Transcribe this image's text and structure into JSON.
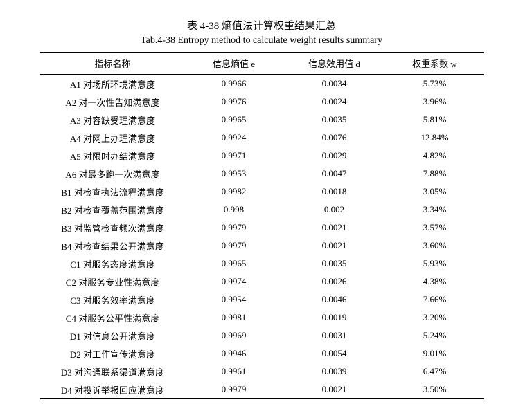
{
  "title_cn": "表 4-38  熵值法计算权重结果汇总",
  "title_en": "Tab.4-38 Entropy method to calculate weight results summary",
  "columns": [
    "指标名称",
    "信息熵值 e",
    "信息效用值 d",
    "权重系数 w"
  ],
  "rows": [
    [
      "A1 对场所环境满意度",
      "0.9966",
      "0.0034",
      "5.73%"
    ],
    [
      "A2 对一次性告知满意度",
      "0.9976",
      "0.0024",
      "3.96%"
    ],
    [
      "A3 对容缺受理满意度",
      "0.9965",
      "0.0035",
      "5.81%"
    ],
    [
      "A4 对网上办理满意度",
      "0.9924",
      "0.0076",
      "12.84%"
    ],
    [
      "A5 对限时办结满意度",
      "0.9971",
      "0.0029",
      "4.82%"
    ],
    [
      "A6 对最多跑一次满意度",
      "0.9953",
      "0.0047",
      "7.88%"
    ],
    [
      "B1 对检查执法流程满意度",
      "0.9982",
      "0.0018",
      "3.05%"
    ],
    [
      "B2 对检查覆盖范围满意度",
      "0.998",
      "0.002",
      "3.34%"
    ],
    [
      "B3 对监管检查频次满意度",
      "0.9979",
      "0.0021",
      "3.57%"
    ],
    [
      "B4 对检查结果公开满意度",
      "0.9979",
      "0.0021",
      "3.60%"
    ],
    [
      "C1 对服务态度满意度",
      "0.9965",
      "0.0035",
      "5.93%"
    ],
    [
      "C2 对服务专业性满意度",
      "0.9974",
      "0.0026",
      "4.38%"
    ],
    [
      "C3 对服务效率满意度",
      "0.9954",
      "0.0046",
      "7.66%"
    ],
    [
      "C4 对服务公平性满意度",
      "0.9981",
      "0.0019",
      "3.20%"
    ],
    [
      "D1 对信息公开满意度",
      "0.9969",
      "0.0031",
      "5.24%"
    ],
    [
      "D2 对工作宣传满意度",
      "0.9946",
      "0.0054",
      "9.01%"
    ],
    [
      "D3 对沟通联系渠道满意度",
      "0.9961",
      "0.0039",
      "6.47%"
    ],
    [
      "D4 对投诉举报回应满意度",
      "0.9979",
      "0.0021",
      "3.50%"
    ]
  ]
}
